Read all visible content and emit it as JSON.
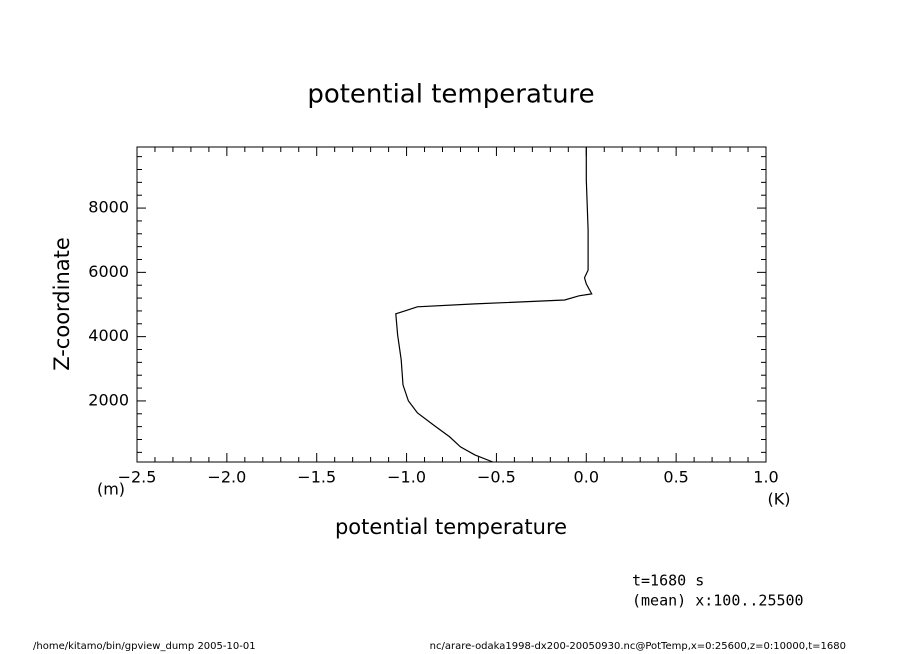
{
  "chart_data": {
    "type": "line",
    "title": "potential temperature",
    "x_label": "potential temperature",
    "y_label": "Z-coordinate",
    "x_unit": "(K)",
    "y_unit": "(m)",
    "annotations": [
      "t=1680 s",
      "(mean) x:100..25500"
    ],
    "footer_left": "/home/kitamo/bin/gpview_dump  2005-10-01",
    "footer_right": "nc/arare-odaka1998-dx200-20050930.nc@PotTemp,x=0:25600,z=0:10000,t=1680",
    "xlim": [
      -2.5,
      1.0
    ],
    "ylim": [
      100,
      9900
    ],
    "xticks": [
      {
        "value": -2.5,
        "label": "−2.5"
      },
      {
        "value": -2.0,
        "label": "−2.0"
      },
      {
        "value": -1.5,
        "label": "−1.5"
      },
      {
        "value": -1.0,
        "label": "−1.0"
      },
      {
        "value": -0.5,
        "label": "−0.5"
      },
      {
        "value": 0.0,
        "label": "0.0"
      },
      {
        "value": 0.5,
        "label": "0.5"
      },
      {
        "value": 1.0,
        "label": "1.0"
      }
    ],
    "yticks": [
      2000,
      4000,
      6000,
      8000
    ],
    "xminorticks": [
      -2.4,
      -2.3,
      -2.2,
      -2.1,
      -1.9,
      -1.8,
      -1.7,
      -1.6,
      -1.4,
      -1.3,
      -1.2,
      -1.1,
      -0.9,
      -0.8,
      -0.7,
      -0.6,
      -0.4,
      -0.3,
      -0.2,
      -0.1,
      0.1,
      0.2,
      0.3,
      0.4,
      0.6,
      0.7,
      0.8,
      0.9
    ],
    "yminorticks": [
      400,
      800,
      1200,
      1600,
      2400,
      2800,
      3200,
      3600,
      4400,
      4800,
      5200,
      5600,
      6400,
      6800,
      7200,
      7600,
      8400,
      8800,
      9200,
      9600
    ],
    "series": [
      {
        "color": "#000000",
        "values": [
          -0.52,
          -0.62,
          -0.7,
          -0.76,
          -0.85,
          -0.94,
          -0.99,
          -1.02,
          -1.03,
          -1.05,
          -1.06,
          -1.01,
          -0.94,
          -0.62,
          -0.12,
          -0.04,
          0.03,
          0.0,
          -0.01,
          0.01,
          0.01,
          0.0,
          0.0
        ],
        "z": [
          100,
          320,
          570,
          880,
          1250,
          1630,
          2000,
          2500,
          3280,
          4060,
          4710,
          4800,
          4930,
          5020,
          5140,
          5270,
          5330,
          5640,
          5830,
          6070,
          7320,
          8880,
          9900
        ]
      }
    ]
  }
}
